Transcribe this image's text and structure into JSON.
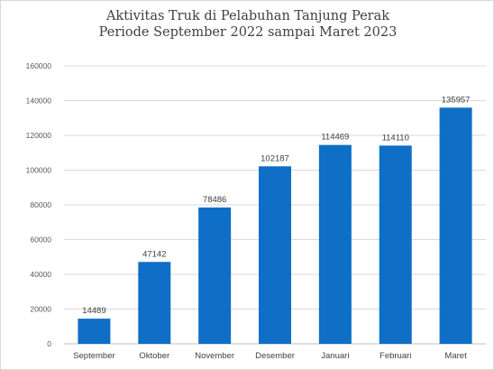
{
  "chart_data": {
    "type": "bar",
    "title": "Aktivitas Truk di Pelabuhan Tanjung Perak",
    "subtitle": "Periode September 2022 sampai Maret 2023",
    "categories": [
      "September",
      "Oktober",
      "November",
      "Desember",
      "Januari",
      "Februari",
      "Maret"
    ],
    "values": [
      14489,
      47142,
      78486,
      102187,
      114469,
      114110,
      135957
    ],
    "data_labels": [
      "14489",
      "47142",
      "78486",
      "102187",
      "114469",
      "114110",
      "135957"
    ],
    "ylim": [
      0,
      160000
    ],
    "yticks": [
      0,
      20000,
      40000,
      60000,
      80000,
      100000,
      120000,
      140000,
      160000
    ],
    "ytick_labels": [
      "0",
      "20000",
      "40000",
      "60000",
      "80000",
      "100000",
      "120000",
      "140000",
      "160000"
    ],
    "xlabel": "",
    "ylabel": "",
    "grid": true,
    "legend": "none",
    "bar_color": "#0f6ec6",
    "grid_color": "#d9d9d9"
  }
}
